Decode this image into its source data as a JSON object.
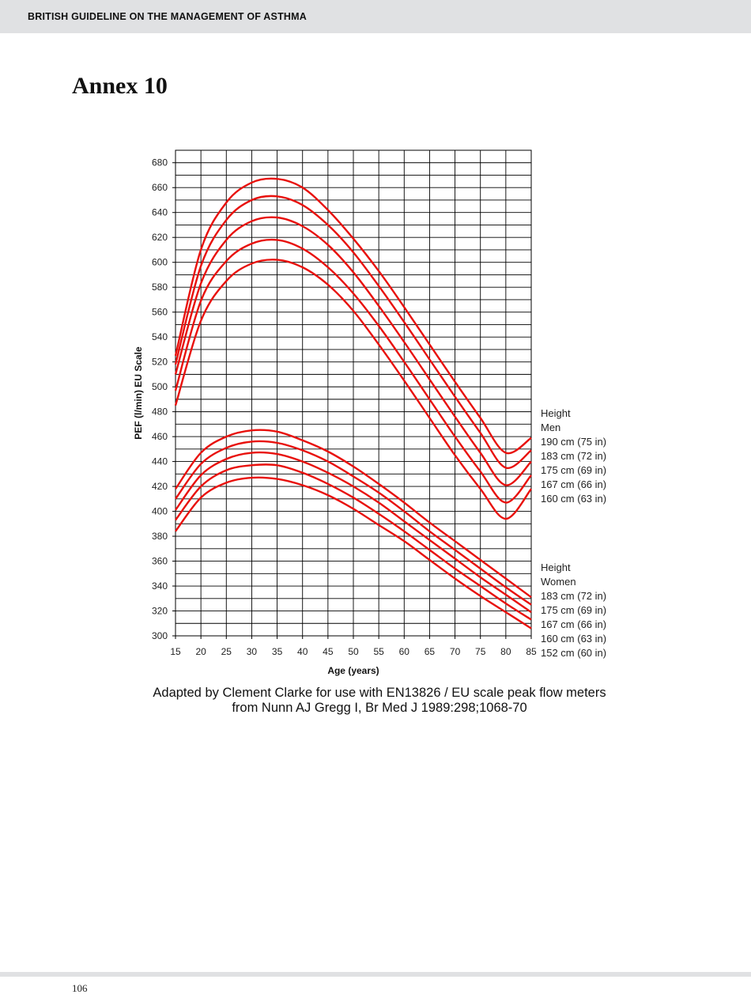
{
  "header": {
    "running_title": "BRITISH GUIDELINE ON THE MANAGEMENT OF ASTHMA"
  },
  "page": {
    "annex_title": "Annex 10",
    "page_number": "106"
  },
  "caption": {
    "line1": "Adapted by Clement Clarke for use with EN13826 / EU scale peak flow meters",
    "line2": "from Nunn AJ Gregg I, Br Med J 1989:298;1068-70"
  },
  "colors": {
    "curve": "#e8100c",
    "grid": "#000000",
    "header_bg": "#e0e1e3"
  },
  "chart_data": {
    "type": "line",
    "title": "",
    "xlabel": "Age (years)",
    "ylabel": "PEF (l/min) EU Scale",
    "xlim": [
      15,
      85
    ],
    "ylim": [
      300,
      690
    ],
    "x_ticks": [
      15,
      20,
      25,
      30,
      35,
      40,
      45,
      50,
      55,
      60,
      65,
      70,
      75,
      80,
      85
    ],
    "y_ticks": [
      300,
      320,
      340,
      360,
      380,
      400,
      420,
      440,
      460,
      480,
      500,
      520,
      540,
      560,
      580,
      600,
      620,
      640,
      660,
      680
    ],
    "x_tick_labels": [
      "15",
      "20",
      "25",
      "30",
      "35",
      "40",
      "45",
      "50",
      "55",
      "60",
      "65",
      "70",
      "75",
      "80",
      "85"
    ],
    "y_tick_labels": [
      "300",
      "320",
      "340",
      "360",
      "380",
      "400",
      "420",
      "440",
      "460",
      "480",
      "500",
      "520",
      "540",
      "560",
      "580",
      "600",
      "620",
      "640",
      "660",
      "680"
    ],
    "grid": true,
    "x": [
      15,
      20,
      25,
      30,
      35,
      40,
      45,
      50,
      55,
      60,
      65,
      70,
      75,
      80,
      85
    ],
    "series": [
      {
        "name": "Men 190 cm (75 in)",
        "group": "men",
        "values": [
          525,
          610,
          648,
          664,
          667,
          660,
          642,
          619,
          593,
          564,
          534,
          504,
          475,
          447,
          459
        ]
      },
      {
        "name": "Men 183 cm (72 in)",
        "group": "men",
        "values": [
          518,
          597,
          634,
          650,
          653,
          646,
          630,
          608,
          581,
          552,
          522,
          492,
          463,
          435,
          449
        ]
      },
      {
        "name": "Men 175 cm (69 in)",
        "group": "men",
        "values": [
          510,
          583,
          618,
          633,
          636,
          629,
          614,
          592,
          565,
          536,
          506,
          476,
          447,
          421,
          440
        ]
      },
      {
        "name": "Men 167 cm (66 in)",
        "group": "men",
        "values": [
          497,
          569,
          601,
          615,
          618,
          611,
          596,
          575,
          549,
          520,
          490,
          460,
          432,
          407,
          429
        ]
      },
      {
        "name": "Men 160 cm (63 in)",
        "group": "men",
        "values": [
          485,
          553,
          585,
          599,
          602,
          596,
          582,
          561,
          534,
          505,
          475,
          445,
          418,
          394,
          418
        ]
      },
      {
        "name": "Women 183 cm (72 in)",
        "group": "women",
        "values": [
          418,
          447,
          460,
          465,
          464,
          457,
          448,
          436,
          422,
          407,
          391,
          376,
          361,
          346,
          331
        ]
      },
      {
        "name": "Women 175 cm (69 in)",
        "group": "women",
        "values": [
          410,
          438,
          451,
          456,
          455,
          449,
          440,
          428,
          415,
          400,
          384,
          369,
          354,
          339,
          325
        ]
      },
      {
        "name": "Women 167 cm (66 in)",
        "group": "women",
        "values": [
          401,
          429,
          442,
          447,
          446,
          440,
          431,
          420,
          407,
          392,
          377,
          362,
          347,
          333,
          319
        ]
      },
      {
        "name": "Women 160 cm (63 in)",
        "group": "women",
        "values": [
          393,
          420,
          433,
          437,
          437,
          431,
          422,
          411,
          398,
          384,
          369,
          354,
          340,
          326,
          313
        ]
      },
      {
        "name": "Women 152 cm (60 in)",
        "group": "women",
        "values": [
          384,
          411,
          423,
          427,
          426,
          421,
          413,
          402,
          389,
          376,
          361,
          346,
          332,
          319,
          306
        ]
      }
    ],
    "legend_groups": [
      {
        "heading": "Height",
        "subheading": "Men",
        "labels": [
          "190 cm (75 in)",
          "183 cm (72 in)",
          "175 cm (69 in)",
          "167 cm (66 in)",
          "160 cm (63 in)"
        ]
      },
      {
        "heading": "Height",
        "subheading": "Women",
        "labels": [
          "183 cm (72 in)",
          "175 cm (69 in)",
          "167 cm (66 in)",
          "160 cm (63 in)",
          "152 cm (60 in)"
        ]
      }
    ],
    "legend_position": "right"
  }
}
